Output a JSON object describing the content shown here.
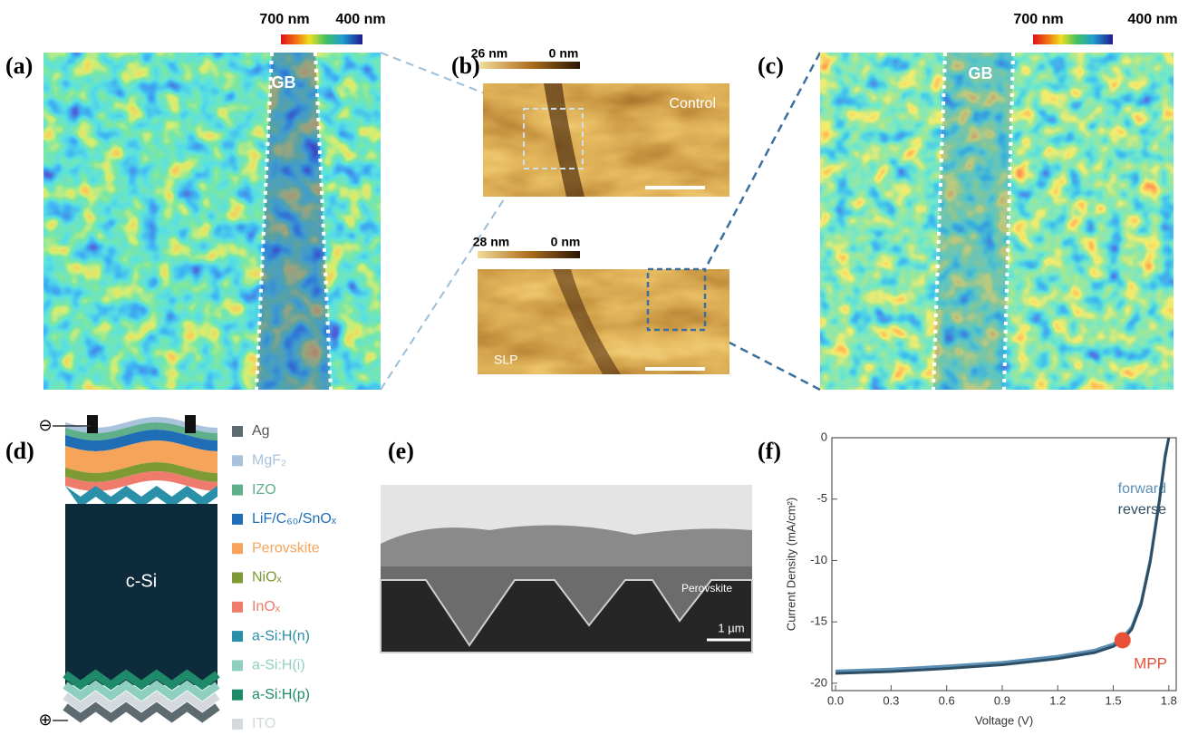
{
  "panels": {
    "a": {
      "label": "(a)",
      "colorbar_left": "700 nm",
      "colorbar_right": "400 nm",
      "annotation": "GB"
    },
    "b": {
      "label": "(b)",
      "control_scale_left": "26 nm",
      "control_scale_right": "0 nm",
      "control_caption": "Control",
      "slp_scale_left": "28 nm",
      "slp_scale_right": "0 nm",
      "slp_caption": "SLP"
    },
    "c": {
      "label": "(c)",
      "colorbar_left": "700 nm",
      "colorbar_right": "400 nm",
      "annotation": "GB"
    },
    "d": {
      "label": "(d)",
      "center_label": "c-Si",
      "negative_terminal": "⊖",
      "positive_terminal": "⊕",
      "legend": [
        {
          "name": "Ag",
          "color": "#5d6a70"
        },
        {
          "name": "MgF₂",
          "color": "#a9c3dc"
        },
        {
          "name": "IZO",
          "color": "#5fb08a"
        },
        {
          "name": "LiF/C₆₀/SnOₓ",
          "color": "#1f6db5"
        },
        {
          "name": "Perovskite",
          "color": "#f5a45a"
        },
        {
          "name": "NiOₓ",
          "color": "#7d9a35"
        },
        {
          "name": "InOₓ",
          "color": "#ee7b6c"
        },
        {
          "name": "a-Si:H(n)",
          "color": "#2a8fa8"
        },
        {
          "name": "a-Si:H(i)",
          "color": "#8fcfc0"
        },
        {
          "name": "a-Si:H(p)",
          "color": "#1e8a6a"
        },
        {
          "name": "ITO",
          "color": "#d3d9dd"
        }
      ]
    },
    "e": {
      "label": "(e)",
      "annotation": "Perovskite",
      "scale_bar": "1 µm"
    }
  },
  "chart_data": {
    "type": "line",
    "label": "(f)",
    "x_label": "Voltage (V)",
    "y_label": "Current Density (mA/cm²)",
    "x": [
      0,
      0.3,
      0.6,
      0.9,
      1.2,
      1.4,
      1.5,
      1.55,
      1.6,
      1.65,
      1.7,
      1.75,
      1.78,
      1.8
    ],
    "series": [
      {
        "name": "forward",
        "color": "#5b8fb5",
        "values": [
          -19.0,
          -18.85,
          -18.6,
          -18.3,
          -17.8,
          -17.3,
          -16.8,
          -16.3,
          -15.4,
          -13.4,
          -9.9,
          -4.9,
          -1.4,
          0
        ]
      },
      {
        "name": "reverse",
        "color": "#2d4e64",
        "values": [
          -19.2,
          -19.05,
          -18.8,
          -18.5,
          -18.0,
          -17.5,
          -17.0,
          -16.5,
          -15.6,
          -13.6,
          -10.1,
          -5.1,
          -1.6,
          0
        ]
      }
    ],
    "mpp": {
      "label": "MPP",
      "x": 1.55,
      "y": -16.5,
      "color": "#e8503a"
    },
    "xlim": [
      -0.02,
      1.84
    ],
    "ylim": [
      -20.6,
      0
    ],
    "xticks": [
      {
        "value": 0,
        "label": "0.0"
      },
      0.3,
      0.6,
      0.9,
      1.2,
      1.5,
      1.8
    ],
    "yticks": [
      0,
      -5,
      -10,
      -15,
      -20
    ]
  }
}
